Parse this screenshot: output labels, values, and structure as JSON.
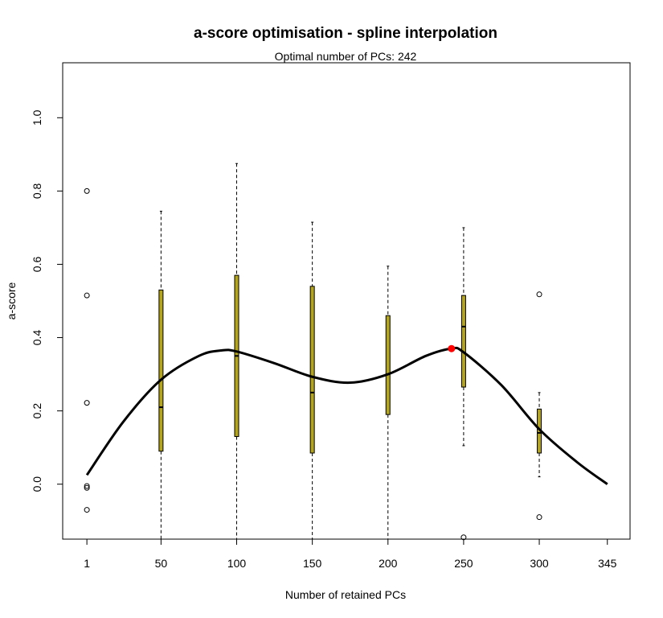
{
  "chart_data": {
    "type": "box-spline",
    "title": "a-score optimisation - spline interpolation",
    "subtitle": "Optimal number of PCs: 242",
    "xlabel": "Number of retained PCs",
    "ylabel": "a-score",
    "x_ticks": [
      "1",
      "50",
      "100",
      "150",
      "200",
      "250",
      "300",
      "345"
    ],
    "x_tick_values": [
      1,
      50,
      100,
      150,
      200,
      250,
      300,
      345
    ],
    "y_ticks": [
      "0.0",
      "0.2",
      "0.4",
      "0.6",
      "0.8",
      "1.0"
    ],
    "y_tick_values": [
      0,
      0.2,
      0.4,
      0.6,
      0.8,
      1.0
    ],
    "xlim": [
      -15,
      360
    ],
    "ylim": [
      -0.15,
      1.15
    ],
    "boxes": [
      {
        "x": 50,
        "whisker_low": -0.15,
        "q1": 0.09,
        "median": 0.21,
        "q3": 0.53,
        "whisker_high": 0.745
      },
      {
        "x": 100,
        "whisker_low": -0.15,
        "q1": 0.13,
        "median": 0.35,
        "q3": 0.57,
        "whisker_high": 0.875
      },
      {
        "x": 150,
        "whisker_low": -0.15,
        "q1": 0.085,
        "median": 0.25,
        "q3": 0.54,
        "whisker_high": 0.715
      },
      {
        "x": 200,
        "whisker_low": -0.15,
        "q1": 0.19,
        "median": 0.3,
        "q3": 0.46,
        "whisker_high": 0.595
      },
      {
        "x": 250,
        "whisker_low": 0.105,
        "q1": 0.265,
        "median": 0.43,
        "q3": 0.515,
        "whisker_high": 0.7
      },
      {
        "x": 300,
        "whisker_low": 0.02,
        "q1": 0.085,
        "median": 0.14,
        "q3": 0.205,
        "whisker_high": 0.25
      }
    ],
    "outliers": [
      {
        "x": 1,
        "y": 0.8
      },
      {
        "x": 1,
        "y": 0.515
      },
      {
        "x": 1,
        "y": 0.222
      },
      {
        "x": 1,
        "y": -0.005
      },
      {
        "x": 1,
        "y": -0.01
      },
      {
        "x": 1,
        "y": -0.07
      },
      {
        "x": 250,
        "y": -0.145
      },
      {
        "x": 300,
        "y": 0.518
      },
      {
        "x": 300,
        "y": -0.09
      }
    ],
    "spline": [
      {
        "x": 1,
        "y": 0.025
      },
      {
        "x": 25,
        "y": 0.17
      },
      {
        "x": 50,
        "y": 0.285
      },
      {
        "x": 75,
        "y": 0.35
      },
      {
        "x": 90,
        "y": 0.365
      },
      {
        "x": 100,
        "y": 0.362
      },
      {
        "x": 125,
        "y": 0.33
      },
      {
        "x": 150,
        "y": 0.293
      },
      {
        "x": 175,
        "y": 0.277
      },
      {
        "x": 200,
        "y": 0.3
      },
      {
        "x": 225,
        "y": 0.35
      },
      {
        "x": 242,
        "y": 0.37
      },
      {
        "x": 250,
        "y": 0.36
      },
      {
        "x": 275,
        "y": 0.27
      },
      {
        "x": 300,
        "y": 0.15
      },
      {
        "x": 325,
        "y": 0.06
      },
      {
        "x": 345,
        "y": 0.0
      }
    ],
    "optimum": {
      "x": 242,
      "y": 0.37
    },
    "colors": {
      "box_fill": "#b5a51a",
      "optimum": "#ff0000",
      "line": "#000000"
    },
    "grid": false,
    "legend": "none"
  }
}
